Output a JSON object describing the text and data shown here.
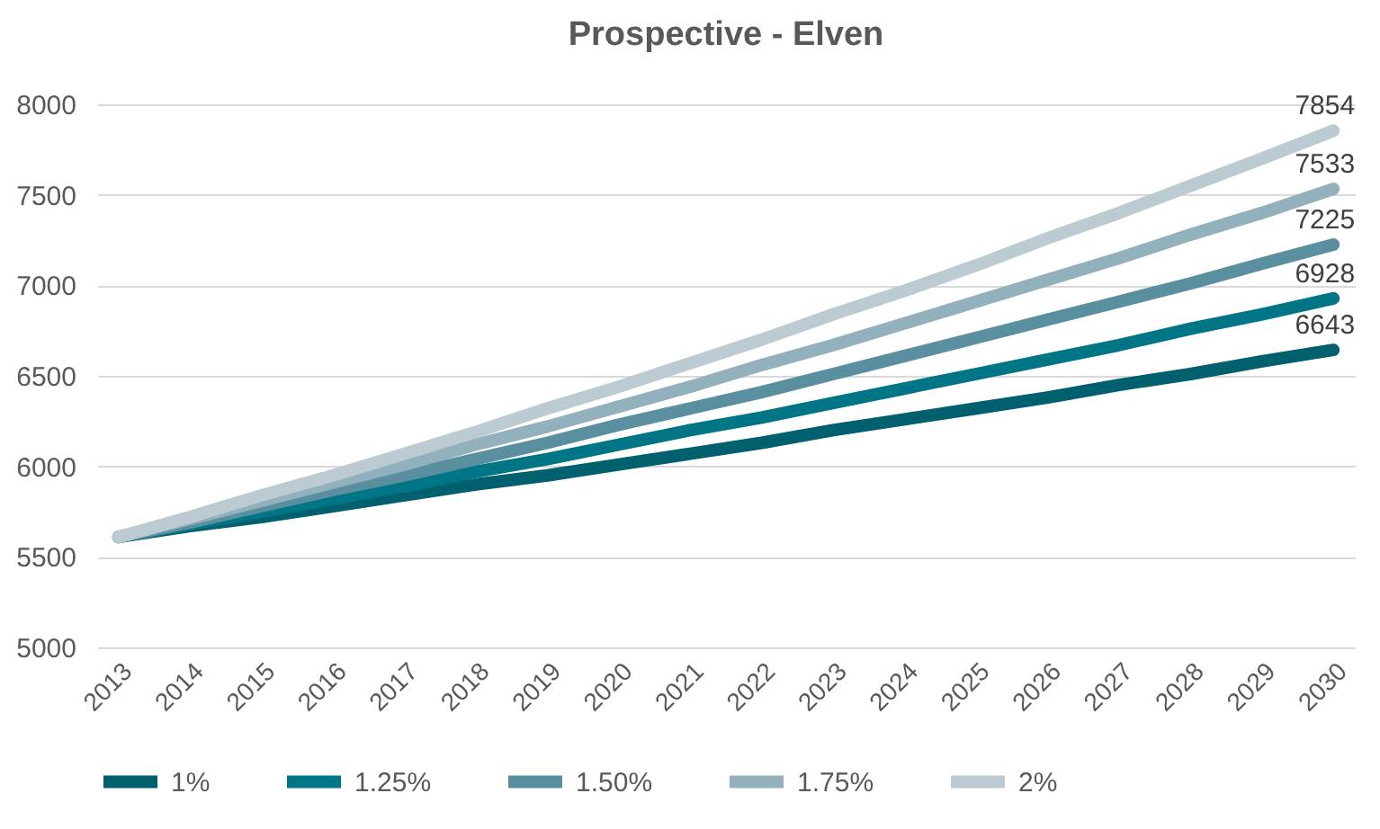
{
  "chart_data": {
    "type": "line",
    "title": "Prospective - Elven",
    "categories": [
      "2013",
      "2014",
      "2015",
      "2016",
      "2017",
      "2018",
      "2019",
      "2020",
      "2021",
      "2022",
      "2023",
      "2024",
      "2025",
      "2026",
      "2027",
      "2028",
      "2029",
      "2030"
    ],
    "series": [
      {
        "name": "1%",
        "color": "#00606e",
        "values": [
          5610,
          5670,
          5720,
          5780,
          5840,
          5900,
          5950,
          6010,
          6070,
          6130,
          6200,
          6260,
          6320,
          6380,
          6450,
          6510,
          6580,
          6643
        ],
        "value_labels": [
          null,
          null,
          null,
          null,
          null,
          null,
          null,
          null,
          null,
          null,
          null,
          null,
          null,
          null,
          null,
          null,
          null,
          "6643"
        ]
      },
      {
        "name": "1.25%",
        "color": "#007585",
        "values": [
          5610,
          5680,
          5750,
          5820,
          5890,
          5970,
          6040,
          6120,
          6200,
          6270,
          6350,
          6430,
          6510,
          6590,
          6670,
          6760,
          6840,
          6928
        ],
        "value_labels": [
          null,
          null,
          null,
          null,
          null,
          null,
          null,
          null,
          null,
          null,
          null,
          null,
          null,
          null,
          null,
          null,
          null,
          "6928"
        ]
      },
      {
        "name": "1.50%",
        "color": "#5a8fa0",
        "values": [
          5610,
          5690,
          5780,
          5870,
          5950,
          6040,
          6130,
          6230,
          6320,
          6410,
          6510,
          6610,
          6710,
          6810,
          6910,
          7010,
          7120,
          7225
        ],
        "value_labels": [
          null,
          null,
          null,
          null,
          null,
          null,
          null,
          null,
          null,
          null,
          null,
          null,
          null,
          null,
          null,
          null,
          null,
          "7225"
        ]
      },
      {
        "name": "1.75%",
        "color": "#93b0bd",
        "values": [
          5610,
          5710,
          5810,
          5910,
          6010,
          6120,
          6220,
          6330,
          6440,
          6560,
          6670,
          6790,
          6910,
          7030,
          7150,
          7280,
          7400,
          7533
        ],
        "value_labels": [
          null,
          null,
          null,
          null,
          null,
          null,
          null,
          null,
          null,
          null,
          null,
          null,
          null,
          null,
          null,
          null,
          null,
          "7533"
        ]
      },
      {
        "name": "2%",
        "color": "#bccbd2",
        "values": [
          5610,
          5720,
          5840,
          5950,
          6070,
          6190,
          6320,
          6440,
          6570,
          6700,
          6840,
          6970,
          7110,
          7260,
          7400,
          7550,
          7700,
          7854
        ],
        "value_labels": [
          null,
          null,
          null,
          null,
          null,
          null,
          null,
          null,
          null,
          null,
          null,
          null,
          null,
          null,
          null,
          null,
          null,
          "7854"
        ]
      }
    ],
    "ylim": [
      5000,
      8000
    ],
    "yticks": [
      5000,
      5500,
      6000,
      6500,
      7000,
      7500,
      8000
    ],
    "grid": "y",
    "legend": "bottom",
    "marker": "none",
    "line_style": "solid"
  }
}
